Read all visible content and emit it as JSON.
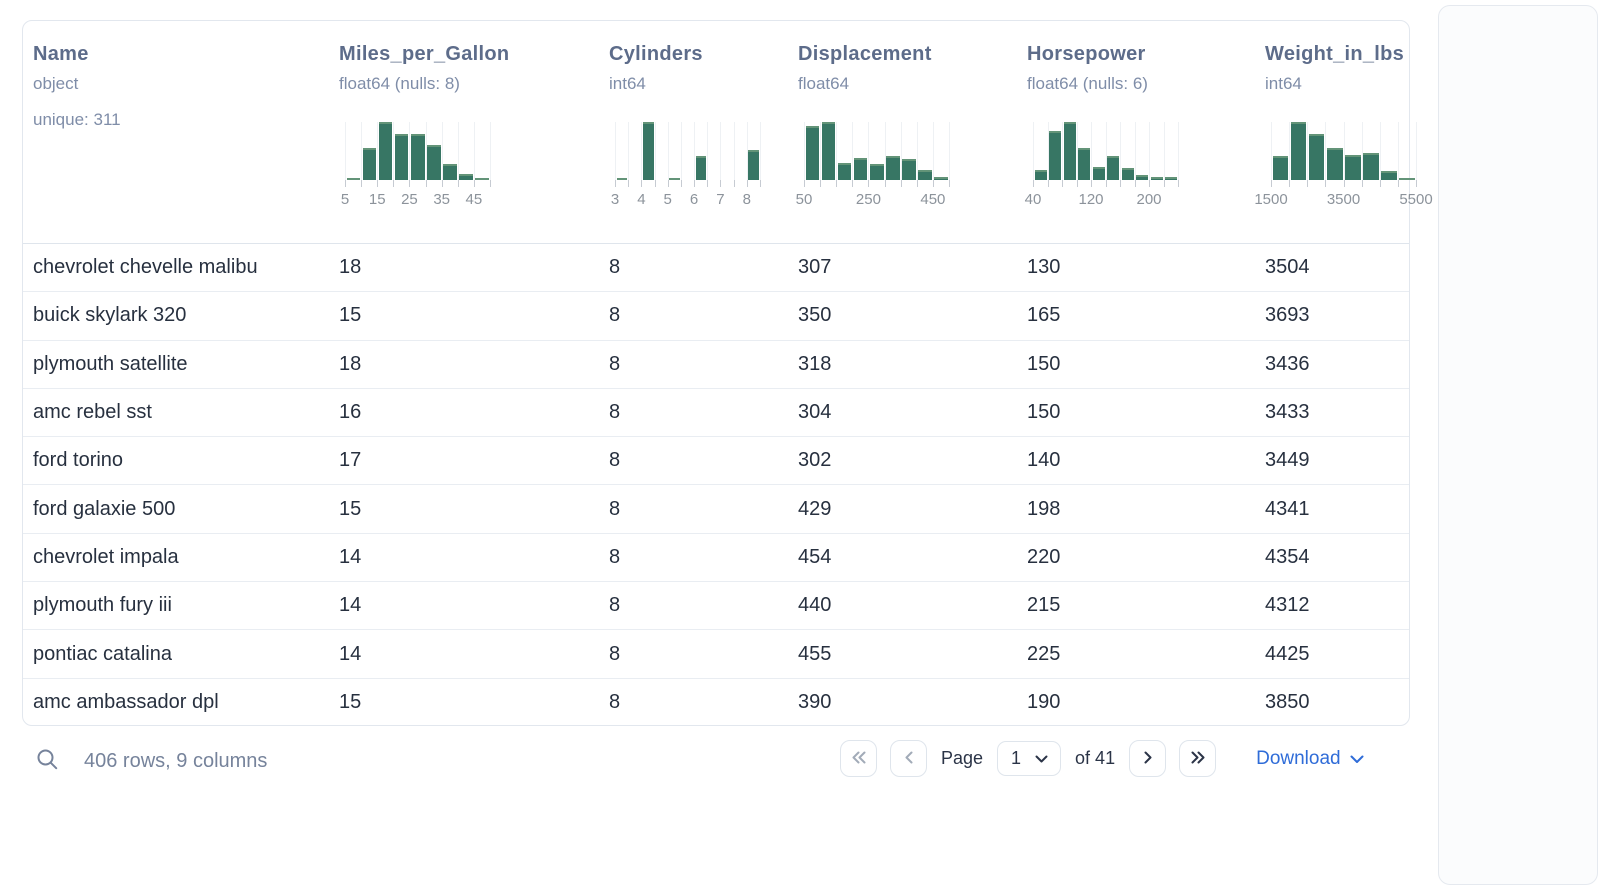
{
  "colors": {
    "hist_bar": "#377664",
    "accent_blue": "#2f6cd8",
    "title_slate": "#5d6c8a"
  },
  "icons": {
    "search": "magnifier-icon",
    "first_page": "double-chevron-left",
    "prev_page": "chevron-left",
    "next_page": "chevron-right",
    "last_page": "double-chevron-right",
    "page_select_caret": "chevron-down",
    "download_caret": "chevron-down"
  },
  "table": {
    "columns": [
      {
        "id": "name",
        "name": "Name",
        "type": "object",
        "meta": "unique: 311"
      },
      {
        "id": "mpg",
        "name": "Miles_per_Gallon",
        "type": "float64 (nulls: 8)",
        "hist": {
          "bin_fracs": [
            0.03,
            0.55,
            1,
            0.8,
            0.8,
            0.6,
            0.28,
            0.1,
            0.03
          ],
          "labels": [
            {
              "at": 0,
              "text": "5"
            },
            {
              "at": 2,
              "text": "15"
            },
            {
              "at": 4,
              "text": "25"
            },
            {
              "at": 6,
              "text": "35"
            },
            {
              "at": 8,
              "text": "45"
            }
          ]
        }
      },
      {
        "id": "cylinders",
        "name": "Cylinders",
        "type": "int64",
        "hist": {
          "bin_fracs": [
            0.04,
            0,
            1,
            0,
            0.03,
            0,
            0.42,
            0,
            0,
            0,
            0.52
          ],
          "labels": [
            {
              "at": 0,
              "text": "3"
            },
            {
              "at": 2,
              "text": "4"
            },
            {
              "at": 4,
              "text": "5"
            },
            {
              "at": 6,
              "text": "6"
            },
            {
              "at": 8,
              "text": "7"
            },
            {
              "at": 10,
              "text": "8"
            }
          ]
        }
      },
      {
        "id": "displacement",
        "name": "Displacement",
        "type": "float64",
        "hist": {
          "bin_fracs": [
            0.93,
            1,
            0.3,
            0.38,
            0.28,
            0.41,
            0.36,
            0.18,
            0.05
          ],
          "labels": [
            {
              "at": 0,
              "text": "50"
            },
            {
              "at": 4,
              "text": "250"
            },
            {
              "at": 8,
              "text": "450"
            }
          ]
        }
      },
      {
        "id": "horsepower",
        "name": "Horsepower",
        "type": "float64 (nulls: 6)",
        "hist": {
          "bin_fracs": [
            0.17,
            0.85,
            1,
            0.55,
            0.22,
            0.42,
            0.2,
            0.09,
            0.05,
            0.05
          ],
          "labels": [
            {
              "at": 0,
              "text": "40"
            },
            {
              "at": 4,
              "text": "120"
            },
            {
              "at": 8,
              "text": "200"
            }
          ]
        }
      },
      {
        "id": "weight",
        "name": "Weight_in_lbs",
        "type": "int64",
        "hist": {
          "bin_fracs": [
            0.42,
            1,
            0.79,
            0.56,
            0.43,
            0.47,
            0.15,
            0.02
          ],
          "labels": [
            {
              "at": 0,
              "text": "1500"
            },
            {
              "at": 4,
              "text": "3500"
            },
            {
              "at": 8,
              "text": "5500"
            }
          ]
        }
      }
    ],
    "rows": [
      [
        "chevrolet chevelle malibu",
        "18",
        "8",
        "307",
        "130",
        "3504"
      ],
      [
        "buick skylark 320",
        "15",
        "8",
        "350",
        "165",
        "3693"
      ],
      [
        "plymouth satellite",
        "18",
        "8",
        "318",
        "150",
        "3436"
      ],
      [
        "amc rebel sst",
        "16",
        "8",
        "304",
        "150",
        "3433"
      ],
      [
        "ford torino",
        "17",
        "8",
        "302",
        "140",
        "3449"
      ],
      [
        "ford galaxie 500",
        "15",
        "8",
        "429",
        "198",
        "4341"
      ],
      [
        "chevrolet impala",
        "14",
        "8",
        "454",
        "220",
        "4354"
      ],
      [
        "plymouth fury iii",
        "14",
        "8",
        "440",
        "215",
        "4312"
      ],
      [
        "pontiac catalina",
        "14",
        "8",
        "455",
        "225",
        "4425"
      ],
      [
        "amc ambassador dpl",
        "15",
        "8",
        "390",
        "190",
        "3850"
      ]
    ]
  },
  "footer": {
    "status": "406 rows, 9 columns",
    "pagination": {
      "page_label": "Page",
      "page_value": "1",
      "of_label": "of 41"
    },
    "download_label": "Download"
  }
}
